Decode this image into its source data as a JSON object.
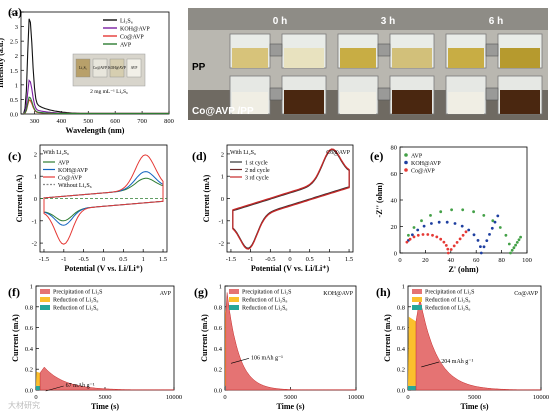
{
  "panel_labels": [
    "(a)",
    "(b)",
    "(c)",
    "(d)",
    "(e)",
    "(f)",
    "(g)",
    "(h)"
  ],
  "watermark": "大材研究",
  "chart_data": [
    {
      "id": "a",
      "type": "line",
      "xlabel": "Wavelength (nm)",
      "ylabel": "Intensity (a.u.)",
      "xlim": [
        250,
        800
      ],
      "ylim": [
        0,
        3.5
      ],
      "xticks": [
        300,
        400,
        500,
        600,
        700,
        800
      ],
      "yticks": [
        0.0,
        0.5,
        1.0,
        1.5,
        2.0,
        2.5,
        3.0,
        3.5
      ],
      "legend": [
        "Li₂S₆",
        "KOH@AVP",
        "Co@AVP",
        "AVP"
      ],
      "colors": [
        "#111111",
        "#7b1fa2",
        "#e53935",
        "#2e7d32"
      ],
      "series": [
        {
          "name": "Li₂S₆",
          "peak": 3.4,
          "tail": 0.6
        },
        {
          "name": "KOH@AVP",
          "peak": 1.2,
          "tail": 0.25
        },
        {
          "name": "Co@AVP",
          "peak": 0.5,
          "tail": 0.1
        },
        {
          "name": "AVP",
          "peak": 0.6,
          "tail": 0.12
        }
      ],
      "inset_vials": [
        "Li₂S₆",
        "Co@AVP",
        "KOH@AVP",
        "AVP"
      ],
      "inset_text": "2 mg mL⁻¹ Li₂S₆"
    },
    {
      "id": "b",
      "type": "photo",
      "times": [
        "0 h",
        "3 h",
        "6 h"
      ],
      "rows": [
        "PP",
        "Co@AVP /PP"
      ]
    },
    {
      "id": "c",
      "type": "line",
      "xlabel": "Potential (V vs. Li/Li⁺)",
      "ylabel": "Current (mA)",
      "xlim": [
        -1.6,
        1.6
      ],
      "ylim": [
        -2.4,
        2.4
      ],
      "xticks": [
        -1.5,
        -1.0,
        -0.5,
        0.0,
        0.5,
        1.0,
        1.5
      ],
      "yticks": [
        -2,
        -1,
        0,
        1,
        2
      ],
      "legend_title": "With Li₂S₆",
      "legend": [
        "AVP",
        "KOH@AVP",
        "Co@AVP",
        "Without Li₂S₆"
      ],
      "colors": [
        "#2e7d32",
        "#1565c0",
        "#e53935",
        "#888888"
      ]
    },
    {
      "id": "d",
      "type": "line",
      "xlabel": "Potential (V vs. Li/Li⁺)",
      "ylabel": "Current (mA)",
      "xlim": [
        -1.6,
        1.6
      ],
      "ylim": [
        -2.4,
        2.4
      ],
      "xticks": [
        -1.5,
        -1.0,
        -0.5,
        0.0,
        0.5,
        1.0,
        1.5
      ],
      "yticks": [
        -2,
        -1,
        0,
        1,
        2
      ],
      "corner_label": "Co@AVP",
      "legend_title": "With Li₂S₆",
      "legend": [
        "1 st  cycle",
        "2 nd  cycle",
        "3 rd  cycle"
      ],
      "colors": [
        "#333333",
        "#6d2b2b",
        "#c62828"
      ]
    },
    {
      "id": "e",
      "type": "scatter",
      "xlabel": "Z' (ohm)",
      "ylabel": "-Z'' (ohm)",
      "xlim": [
        0,
        100
      ],
      "ylim": [
        0,
        80
      ],
      "xticks": [
        0,
        20,
        40,
        60,
        80,
        100
      ],
      "yticks": [
        0,
        20,
        40,
        60,
        80
      ],
      "legend": [
        "AVP",
        "KOH@AVP",
        "Co@AVP"
      ],
      "colors": [
        "#43a047",
        "#1e3fa0",
        "#e53935"
      ],
      "series": [
        {
          "name": "AVP",
          "center": 45,
          "radius": 42,
          "tail_end": [
            95,
            12
          ]
        },
        {
          "name": "KOH@AVP",
          "center": 34,
          "radius": 30,
          "tail_end": [
            77,
            28
          ]
        },
        {
          "name": "Co@AVP",
          "center": 20,
          "radius": 18,
          "tail_end": [
            52,
            16
          ]
        }
      ]
    },
    {
      "id": "f",
      "type": "area",
      "xlabel": "Time (s)",
      "ylabel": "Current (mA)",
      "xlim": [
        0,
        10000
      ],
      "ylim": [
        0,
        1.0
      ],
      "xticks": [
        0,
        5000,
        10000
      ],
      "yticks": [
        0.0,
        0.2,
        0.4,
        0.6,
        0.8,
        1.0
      ],
      "corner_label": "AVP",
      "annotation": "67 mAh g⁻¹",
      "legend": [
        "Precipitation of Li₂S",
        "Reduction of Li₂S₈",
        "Reduction of Li₂S₆"
      ],
      "colors": [
        "#e57373",
        "#fbc02d",
        "#26a69a"
      ],
      "peak": {
        "t": 300,
        "i": 0.22
      },
      "decay": 1500
    },
    {
      "id": "g",
      "type": "area",
      "xlabel": "Time (s)",
      "ylabel": "Current (mA)",
      "xlim": [
        0,
        10000
      ],
      "ylim": [
        0,
        1.0
      ],
      "xticks": [
        0,
        5000,
        10000
      ],
      "yticks": [
        0.0,
        0.2,
        0.4,
        0.6,
        0.8,
        1.0
      ],
      "corner_label": "KOH@AVP",
      "annotation": "106 mAh g⁻¹",
      "legend": [
        "Precipitation of Li₂S",
        "Reduction of Li₂S₈",
        "Reduction of Li₂S₆"
      ],
      "colors": [
        "#e57373",
        "#fbc02d",
        "#26a69a"
      ],
      "peak": {
        "t": 60,
        "i": 0.98
      },
      "decay": 900
    },
    {
      "id": "h",
      "type": "area",
      "xlabel": "Time (s)",
      "ylabel": "Current (mA)",
      "xlim": [
        0,
        10000
      ],
      "ylim": [
        0,
        1.0
      ],
      "xticks": [
        0,
        5000,
        10000
      ],
      "yticks": [
        0.0,
        0.2,
        0.4,
        0.6,
        0.8,
        1.0
      ],
      "corner_label": "Co@AVP",
      "annotation": "204 mAh g⁻¹",
      "legend": [
        "Precipitation of Li₂S",
        "Reduction of Li₂S₈",
        "Reduction of Li₂S₆"
      ],
      "colors": [
        "#e57373",
        "#fbc02d",
        "#26a69a"
      ],
      "peak": {
        "t": 600,
        "i": 0.88
      },
      "decay": 1300
    }
  ]
}
